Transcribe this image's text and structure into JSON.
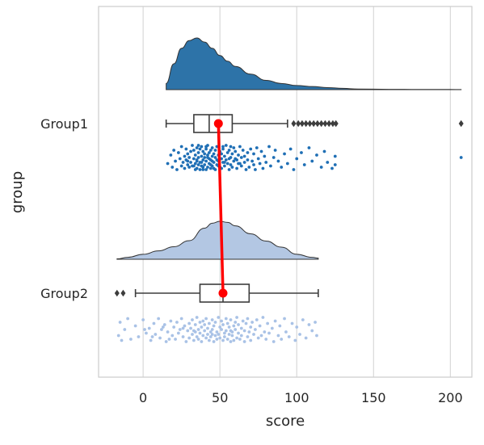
{
  "chart_data": {
    "type": "raincloud",
    "orientation": "horizontal",
    "xlabel": "score",
    "ylabel": "group",
    "xlim": [
      -29,
      214
    ],
    "xticks": [
      0,
      50,
      100,
      150,
      200
    ],
    "grid": true,
    "categories": [
      "Group1",
      "Group2"
    ],
    "colors": {
      "Group1": "#2d73a8",
      "Group1_points": "#1f6fb5",
      "Group2": "#b3c7e3",
      "Group2_points": "#a9c2e6",
      "mean_line": "#ff0000",
      "box_edge": "#3d3d3d",
      "grid": "#d9d9d9",
      "frame": "#cccccc"
    },
    "groups": [
      {
        "name": "Group1",
        "box": {
          "whisker_low": 15,
          "q1": 33,
          "median": 43,
          "q3": 58,
          "whisker_high": 94
        },
        "mean": 49,
        "outliers": [
          98,
          101,
          103.5,
          106,
          108.5,
          111,
          113.5,
          116,
          118.5,
          121,
          123.5,
          125.5,
          207
        ],
        "density": {
          "x": [
            15,
            20,
            25,
            30,
            35,
            40,
            45,
            50,
            55,
            60,
            70,
            80,
            90,
            100,
            110,
            120,
            130,
            140,
            160,
            180,
            200,
            207
          ],
          "y": [
            0.12,
            0.5,
            0.8,
            0.95,
            1.0,
            0.92,
            0.8,
            0.66,
            0.55,
            0.45,
            0.3,
            0.18,
            0.12,
            0.08,
            0.06,
            0.04,
            0.025,
            0.012,
            0.006,
            0.004,
            0.003,
            0.002
          ]
        }
      },
      {
        "name": "Group2",
        "box": {
          "whisker_low": -5,
          "q1": 37,
          "median": 52,
          "q3": 69,
          "whisker_high": 114
        },
        "mean": 52,
        "outliers": [
          -17,
          -13
        ],
        "density": {
          "x": [
            -17,
            -10,
            0,
            10,
            20,
            30,
            40,
            45,
            50,
            55,
            60,
            70,
            80,
            90,
            100,
            110,
            114
          ],
          "y": [
            0.01,
            0.05,
            0.13,
            0.22,
            0.33,
            0.49,
            0.82,
            0.95,
            1.0,
            0.97,
            0.88,
            0.67,
            0.48,
            0.32,
            0.13,
            0.05,
            0.03
          ]
        }
      }
    ],
    "points": {
      "Group1": [
        [
          16,
          0.05
        ],
        [
          18,
          -0.02
        ],
        [
          19,
          0.08
        ],
        [
          20,
          -0.06
        ],
        [
          21,
          0.03
        ],
        [
          22,
          0.1
        ],
        [
          23,
          -0.04
        ],
        [
          24,
          0.01
        ],
        [
          25,
          0.07
        ],
        [
          25,
          -0.09
        ],
        [
          26,
          0.04
        ],
        [
          27,
          -0.01
        ],
        [
          27,
          0.09
        ],
        [
          28,
          -0.07
        ],
        [
          28,
          0.02
        ],
        [
          29,
          0.06
        ],
        [
          29,
          -0.03
        ],
        [
          30,
          0.0
        ],
        [
          30,
          0.08
        ],
        [
          31,
          -0.05
        ],
        [
          31,
          0.04
        ],
        [
          32,
          -0.1
        ],
        [
          32,
          0.07
        ],
        [
          33,
          0.01
        ],
        [
          33,
          -0.06
        ],
        [
          34,
          0.1
        ],
        [
          34,
          -0.02
        ],
        [
          34,
          0.05
        ],
        [
          35,
          -0.08
        ],
        [
          35,
          0.03
        ],
        [
          35,
          0.09
        ],
        [
          36,
          -0.04
        ],
        [
          36,
          0.06
        ],
        [
          36,
          0.0
        ],
        [
          37,
          -0.07
        ],
        [
          37,
          0.04
        ],
        [
          37,
          0.1
        ],
        [
          38,
          -0.01
        ],
        [
          38,
          0.07
        ],
        [
          38,
          -0.09
        ],
        [
          39,
          0.02
        ],
        [
          39,
          -0.05
        ],
        [
          39,
          0.08
        ],
        [
          40,
          0.0
        ],
        [
          40,
          -0.03
        ],
        [
          40,
          0.06
        ],
        [
          41,
          0.1
        ],
        [
          41,
          -0.07
        ],
        [
          41,
          0.03
        ],
        [
          42,
          -0.02
        ],
        [
          42,
          0.08
        ],
        [
          42,
          -0.1
        ],
        [
          43,
          0.05
        ],
        [
          43,
          -0.04
        ],
        [
          43,
          0.01
        ],
        [
          44,
          0.09
        ],
        [
          44,
          -0.06
        ],
        [
          44,
          0.02
        ],
        [
          45,
          -0.01
        ],
        [
          45,
          0.07
        ],
        [
          45,
          -0.08
        ],
        [
          46,
          0.04
        ],
        [
          46,
          -0.03
        ],
        [
          47,
          0.1
        ],
        [
          47,
          0.0
        ],
        [
          47,
          -0.06
        ],
        [
          48,
          0.06
        ],
        [
          48,
          -0.09
        ],
        [
          49,
          0.03
        ],
        [
          49,
          -0.02
        ],
        [
          50,
          0.08
        ],
        [
          50,
          -0.05
        ],
        [
          51,
          0.01
        ],
        [
          51,
          0.09
        ],
        [
          52,
          -0.07
        ],
        [
          52,
          0.04
        ],
        [
          53,
          -0.01
        ],
        [
          53,
          0.07
        ],
        [
          54,
          -0.1
        ],
        [
          54,
          0.02
        ],
        [
          55,
          0.05
        ],
        [
          55,
          -0.04
        ],
        [
          56,
          0.1
        ],
        [
          56,
          -0.06
        ],
        [
          57,
          0.0
        ],
        [
          57,
          0.06
        ],
        [
          58,
          -0.03
        ],
        [
          58,
          0.08
        ],
        [
          59,
          -0.08
        ],
        [
          59,
          0.03
        ],
        [
          60,
          0.01
        ],
        [
          60,
          -0.05
        ],
        [
          61,
          0.09
        ],
        [
          62,
          -0.02
        ],
        [
          62,
          0.05
        ],
        [
          63,
          -0.09
        ],
        [
          64,
          0.07
        ],
        [
          64,
          0.0
        ],
        [
          65,
          -0.06
        ],
        [
          66,
          0.04
        ],
        [
          66,
          -0.01
        ],
        [
          67,
          0.1
        ],
        [
          68,
          -0.04
        ],
        [
          68,
          0.02
        ],
        [
          69,
          0.08
        ],
        [
          70,
          -0.07
        ],
        [
          71,
          0.03
        ],
        [
          72,
          -0.03
        ],
        [
          72,
          0.06
        ],
        [
          73,
          0.1
        ],
        [
          74,
          -0.08
        ],
        [
          75,
          0.01
        ],
        [
          76,
          0.05
        ],
        [
          77,
          -0.05
        ],
        [
          78,
          0.09
        ],
        [
          79,
          -0.01
        ],
        [
          80,
          0.04
        ],
        [
          82,
          -0.09
        ],
        [
          83,
          0.07
        ],
        [
          85,
          0.0
        ],
        [
          86,
          -0.06
        ],
        [
          88,
          0.03
        ],
        [
          90,
          0.08
        ],
        [
          92,
          -0.03
        ],
        [
          94,
          0.05
        ],
        [
          96,
          -0.07
        ],
        [
          98,
          0.1
        ],
        [
          100,
          0.01
        ],
        [
          103,
          -0.04
        ],
        [
          105,
          0.06
        ],
        [
          108,
          -0.08
        ],
        [
          110,
          0.03
        ],
        [
          113,
          -0.02
        ],
        [
          116,
          0.08
        ],
        [
          118,
          -0.05
        ],
        [
          120,
          0.04
        ],
        [
          123,
          0.09
        ],
        [
          125,
          -0.01
        ],
        [
          125,
          0.06
        ],
        [
          35,
          0.02
        ],
        [
          38,
          0.04
        ],
        [
          41,
          -0.09
        ],
        [
          44,
          0.06
        ],
        [
          46,
          0.09
        ],
        [
          48,
          0.02
        ],
        [
          51,
          -0.03
        ],
        [
          53,
          0.04
        ],
        [
          57,
          -0.09
        ],
        [
          61,
          0.02
        ],
        [
          29,
          0.03
        ],
        [
          33,
          0.07
        ],
        [
          36,
          -0.1
        ],
        [
          39,
          0.1
        ],
        [
          42,
          0.0
        ],
        [
          45,
          0.03
        ],
        [
          49,
          0.07
        ],
        [
          52,
          -0.09
        ],
        [
          56,
          0.01
        ],
        [
          63,
          0.05
        ],
        [
          207,
          0.0
        ]
      ],
      "Group2": [
        [
          -16,
          0.05
        ],
        [
          -15,
          -0.06
        ],
        [
          -12,
          0.0
        ],
        [
          -8,
          0.08
        ],
        [
          -5,
          -0.03
        ],
        [
          -3,
          0.06
        ],
        [
          0,
          -0.08
        ],
        [
          2,
          0.03
        ],
        [
          4,
          -0.01
        ],
        [
          5,
          0.09
        ],
        [
          7,
          -0.05
        ],
        [
          8,
          0.04
        ],
        [
          10,
          -0.09
        ],
        [
          11,
          0.07
        ],
        [
          12,
          0.0
        ],
        [
          14,
          -0.04
        ],
        [
          15,
          0.1
        ],
        [
          16,
          0.02
        ],
        [
          18,
          -0.07
        ],
        [
          19,
          0.05
        ],
        [
          20,
          -0.02
        ],
        [
          21,
          0.08
        ],
        [
          22,
          -0.06
        ],
        [
          23,
          0.03
        ],
        [
          24,
          0.0
        ],
        [
          25,
          -0.09
        ],
        [
          26,
          0.06
        ],
        [
          27,
          -0.03
        ],
        [
          28,
          0.1
        ],
        [
          29,
          0.01
        ],
        [
          30,
          -0.05
        ],
        [
          30,
          0.07
        ],
        [
          31,
          -0.01
        ],
        [
          32,
          0.04
        ],
        [
          32,
          -0.08
        ],
        [
          33,
          0.09
        ],
        [
          34,
          -0.04
        ],
        [
          34,
          0.02
        ],
        [
          35,
          0.06
        ],
        [
          35,
          -0.1
        ],
        [
          36,
          0.0
        ],
        [
          36,
          0.08
        ],
        [
          37,
          -0.06
        ],
        [
          37,
          0.03
        ],
        [
          38,
          -0.02
        ],
        [
          38,
          0.1
        ],
        [
          39,
          0.05
        ],
        [
          39,
          -0.07
        ],
        [
          40,
          0.01
        ],
        [
          40,
          -0.04
        ],
        [
          41,
          0.07
        ],
        [
          41,
          -0.09
        ],
        [
          42,
          0.04
        ],
        [
          42,
          -0.01
        ],
        [
          43,
          0.09
        ],
        [
          43,
          -0.05
        ],
        [
          44,
          0.02
        ],
        [
          44,
          0.06
        ],
        [
          45,
          -0.08
        ],
        [
          45,
          0.0
        ],
        [
          46,
          0.1
        ],
        [
          46,
          -0.03
        ],
        [
          47,
          0.05
        ],
        [
          47,
          -0.06
        ],
        [
          48,
          0.02
        ],
        [
          48,
          0.08
        ],
        [
          49,
          -0.1
        ],
        [
          49,
          0.04
        ],
        [
          50,
          -0.02
        ],
        [
          50,
          0.07
        ],
        [
          51,
          0.0
        ],
        [
          51,
          -0.07
        ],
        [
          52,
          0.09
        ],
        [
          52,
          -0.04
        ],
        [
          53,
          0.03
        ],
        [
          53,
          0.06
        ],
        [
          54,
          -0.09
        ],
        [
          54,
          0.01
        ],
        [
          55,
          -0.05
        ],
        [
          55,
          0.08
        ],
        [
          56,
          0.04
        ],
        [
          56,
          -0.02
        ],
        [
          57,
          0.1
        ],
        [
          57,
          -0.08
        ],
        [
          58,
          0.02
        ],
        [
          58,
          0.05
        ],
        [
          59,
          -0.03
        ],
        [
          59,
          0.09
        ],
        [
          60,
          -0.06
        ],
        [
          60,
          0.0
        ],
        [
          61,
          0.07
        ],
        [
          61,
          -0.1
        ],
        [
          62,
          0.03
        ],
        [
          62,
          -0.04
        ],
        [
          63,
          0.08
        ],
        [
          64,
          -0.01
        ],
        [
          64,
          0.05
        ],
        [
          65,
          -0.07
        ],
        [
          66,
          0.1
        ],
        [
          66,
          0.01
        ],
        [
          67,
          -0.05
        ],
        [
          68,
          0.06
        ],
        [
          68,
          -0.09
        ],
        [
          69,
          0.02
        ],
        [
          70,
          -0.02
        ],
        [
          70,
          0.09
        ],
        [
          71,
          -0.06
        ],
        [
          72,
          0.04
        ],
        [
          73,
          0.0
        ],
        [
          74,
          -0.08
        ],
        [
          75,
          0.07
        ],
        [
          76,
          -0.03
        ],
        [
          77,
          0.05
        ],
        [
          78,
          -0.1
        ],
        [
          79,
          0.02
        ],
        [
          80,
          0.08
        ],
        [
          81,
          -0.05
        ],
        [
          82,
          0.03
        ],
        [
          84,
          -0.01
        ],
        [
          85,
          0.1
        ],
        [
          86,
          -0.07
        ],
        [
          88,
          0.05
        ],
        [
          89,
          -0.03
        ],
        [
          90,
          0.08
        ],
        [
          92,
          -0.09
        ],
        [
          93,
          0.02
        ],
        [
          95,
          0.06
        ],
        [
          97,
          -0.05
        ],
        [
          99,
          0.09
        ],
        [
          100,
          -0.02
        ],
        [
          102,
          0.04
        ],
        [
          104,
          -0.08
        ],
        [
          106,
          0.07
        ],
        [
          108,
          -0.04
        ],
        [
          110,
          0.01
        ],
        [
          112,
          -0.06
        ],
        [
          113,
          0.05
        ],
        [
          -14,
          0.09
        ],
        [
          -10,
          -0.09
        ],
        [
          1,
          0.0
        ],
        [
          6,
          0.06
        ],
        [
          13,
          -0.02
        ],
        [
          17,
          0.08
        ],
        [
          26,
          -0.01
        ],
        [
          33,
          0.01
        ],
        [
          45,
          0.04
        ],
        [
          57,
          0.01
        ]
      ]
    }
  }
}
